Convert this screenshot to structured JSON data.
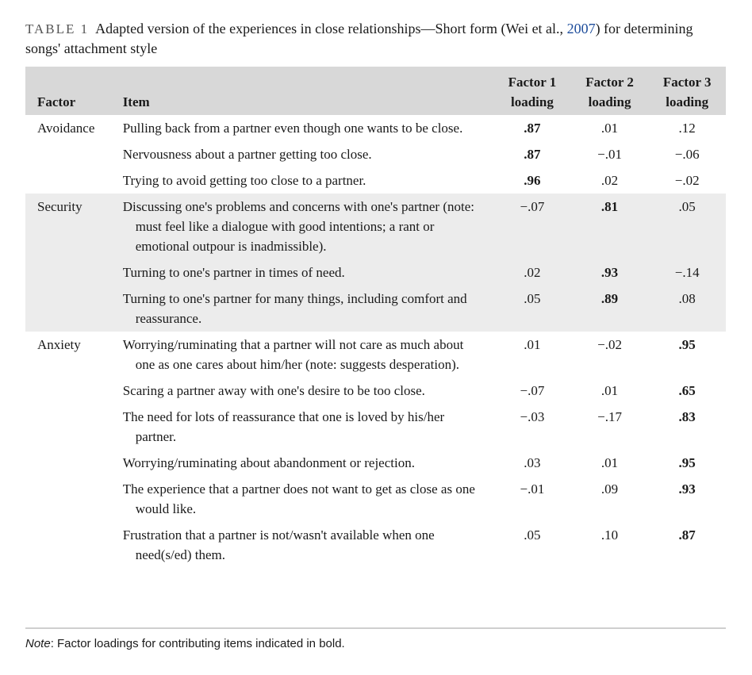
{
  "caption": {
    "label": "TABLE 1",
    "text_before": "Adapted version of the experiences in close relationships—Short form (Wei et al., ",
    "citation_year": "2007",
    "text_after": ") for determining songs' attachment style"
  },
  "headers": {
    "factor": "Factor",
    "item": "Item",
    "f1_line1": "Factor 1",
    "f1_line2": "loading",
    "f2_line1": "Factor 2",
    "f2_line2": "loading",
    "f3_line1": "Factor 3",
    "f3_line2": "loading"
  },
  "groups": [
    {
      "factor": "Avoidance",
      "rows": [
        {
          "item": "Pulling back from a partner even though one wants to be close.",
          "f1": ".87",
          "f2": ".01",
          "f3": ".12"
        },
        {
          "item": "Nervousness about a partner getting too close.",
          "f1": ".87",
          "f2": "−.01",
          "f3": "−.06"
        },
        {
          "item": "Trying to avoid getting too close to a partner.",
          "f1": ".96",
          "f2": ".02",
          "f3": "−.02"
        }
      ]
    },
    {
      "factor": "Security",
      "rows": [
        {
          "item": "Discussing one's problems and concerns with one's partner (note: must feel like a dialogue with good intentions; a rant or emotional outpour is inadmissible).",
          "f1": "−.07",
          "f2": ".81",
          "f3": ".05"
        },
        {
          "item": "Turning to one's partner in times of need.",
          "f1": ".02",
          "f2": ".93",
          "f3": "−.14"
        },
        {
          "item": "Turning to one's partner for many things, including comfort and reassurance.",
          "f1": ".05",
          "f2": ".89",
          "f3": ".08"
        }
      ]
    },
    {
      "factor": "Anxiety",
      "rows": [
        {
          "item": "Worrying/ruminating that a partner will not care as much about one as one cares about him/her (note: suggests desperation).",
          "f1": ".01",
          "f2": "−.02",
          "f3": ".95"
        },
        {
          "item": "Scaring a partner away with one's desire to be too close.",
          "f1": "−.07",
          "f2": ".01",
          "f3": ".65"
        },
        {
          "item": "The need for lots of reassurance that one is loved by his/her partner.",
          "f1": "−.03",
          "f2": "−.17",
          "f3": ".83"
        },
        {
          "item": "Worrying/ruminating about abandonment or rejection.",
          "f1": ".03",
          "f2": ".01",
          "f3": ".95"
        },
        {
          "item": "The experience that a partner does not want to get as close as one would like.",
          "f1": "−.01",
          "f2": ".09",
          "f3": ".93"
        },
        {
          "item": "Frustration that a partner is not/wasn't available when one need(s/ed) them.",
          "f1": ".05",
          "f2": ".10",
          "f3": ".87"
        }
      ]
    }
  ],
  "note": {
    "label": "Note",
    "text": ": Factor loadings for contributing items indicated in bold."
  }
}
